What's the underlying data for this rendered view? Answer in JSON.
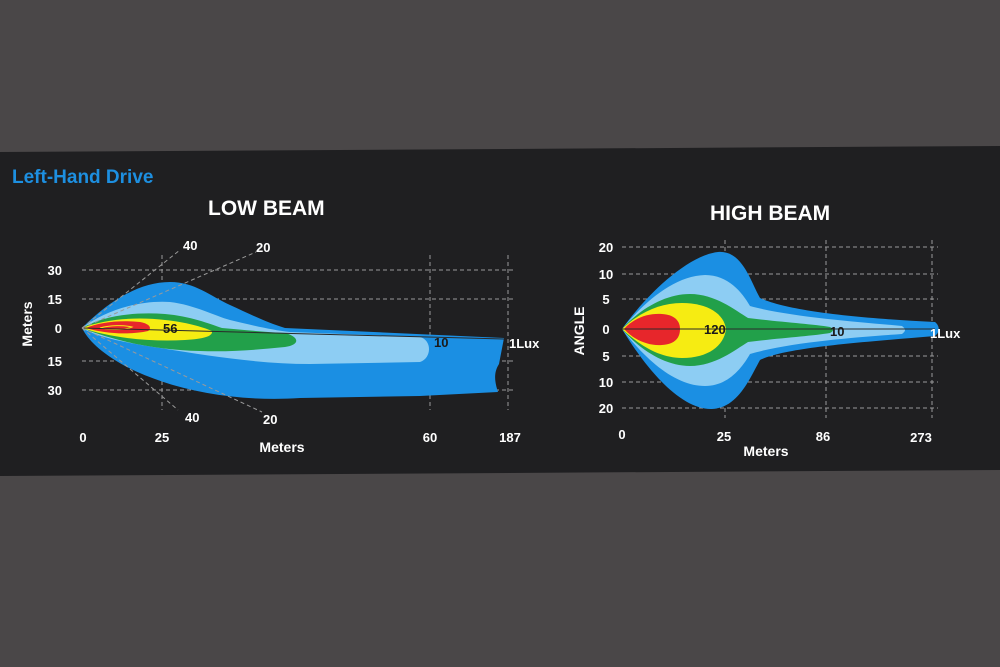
{
  "drive_label": "Left-Hand Drive",
  "colors": {
    "page_bg": "#4a4748",
    "panel_bg": "#1f1f21",
    "accent_label": "#1d8fe0",
    "contour_1lux": "#1b8fe3",
    "contour_mid": "#8dcdf3",
    "contour_10lux": "#22a04a",
    "contour_yellow": "#f6ec12",
    "contour_hot": "#e7262b"
  },
  "chart_data": [
    {
      "type": "area",
      "title": "LOW BEAM",
      "xlabel": "Meters",
      "ylabel": "Meters",
      "x_ticks": [
        "0",
        "25",
        "60",
        "187"
      ],
      "y_ticks": [
        "30",
        "15",
        "0",
        "15",
        "30"
      ],
      "angle_guides": [
        "40",
        "20",
        "40",
        "20"
      ],
      "contour_labels": [
        {
          "text": "56",
          "lux": 56
        },
        {
          "text": "10",
          "lux": 10
        }
      ],
      "end_label": "1Lux",
      "grid": true
    },
    {
      "type": "area",
      "title": "HIGH BEAM",
      "xlabel": "Meters",
      "ylabel": "ANGLE",
      "x_ticks": [
        "0",
        "25",
        "86",
        "273"
      ],
      "y_ticks": [
        "20",
        "10",
        "5",
        "0",
        "5",
        "10",
        "20"
      ],
      "contour_labels": [
        {
          "text": "120",
          "lux": 120
        },
        {
          "text": "10",
          "lux": 10
        }
      ],
      "end_label": "1Lux",
      "grid": true
    }
  ]
}
